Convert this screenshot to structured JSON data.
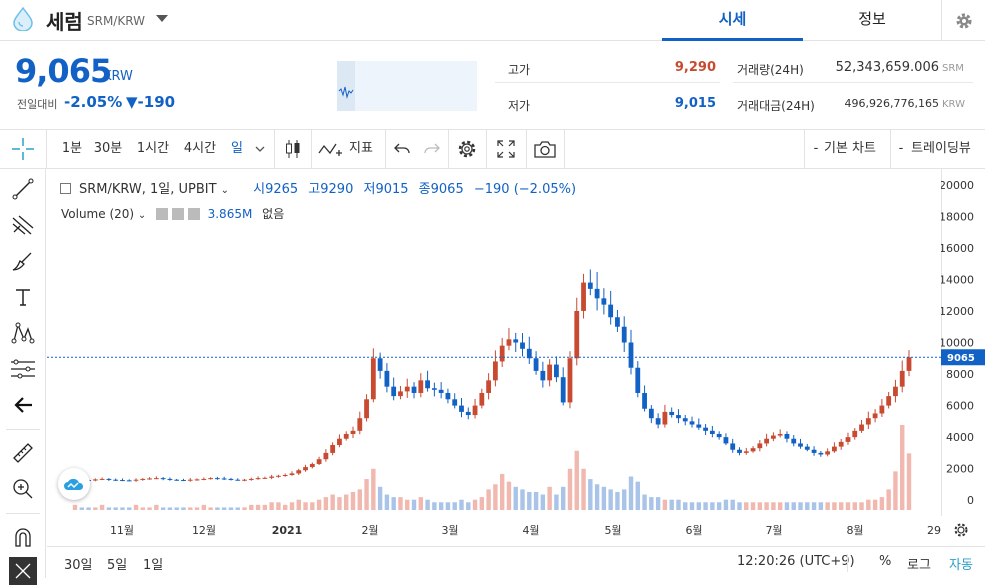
{
  "header": {
    "coin_name": "세럼",
    "pair": "SRM/KRW",
    "tabs": [
      "시세",
      "정보"
    ]
  },
  "ticker": {
    "price": "9,065",
    "unit": "KRW",
    "change_label": "전일대비",
    "change_pct": "-2.05%",
    "change_abs": "▼-190",
    "high_label": "고가",
    "high": "9,290",
    "low_label": "저가",
    "low": "9,015",
    "volume_label": "거래량(24H)",
    "volume": "52,343,659.006",
    "volume_unit": "SRM",
    "amount_label": "거래대금(24H)",
    "amount": "496,926,776,165",
    "amount_unit": "KRW"
  },
  "toolbar": {
    "intervals": [
      "1분",
      "30분",
      "1시간",
      "4시간",
      "일"
    ],
    "indicators": "지표",
    "basic_chart": "기본 차트",
    "trading_view": "트레이딩뷰"
  },
  "legend": {
    "main": "SRM/KRW, 1일, UPBIT",
    "open": "시9265",
    "high": "고9290",
    "low": "저9015",
    "close": "종9065",
    "change": "−190 (−2.05%)",
    "volume_label": "Volume (20)",
    "volume_value": "3.865M",
    "volume_extra": "없음"
  },
  "colors": {
    "up": "#c84a31",
    "down": "#1261c4",
    "accent": "#1261c4"
  },
  "chart_data": {
    "type": "candlestick",
    "x_labels": [
      "11월",
      "12월",
      "2021",
      "2월",
      "3월",
      "4월",
      "5월",
      "6월",
      "7월",
      "8월",
      "29"
    ],
    "y_ticks": [
      0,
      2000,
      4000,
      6000,
      8000,
      10000,
      12000,
      14000,
      16000,
      18000,
      20000
    ],
    "ylim": [
      -1000,
      21000
    ],
    "last_price_label": "9065",
    "close_series": [
      1300,
      1280,
      1250,
      1320,
      1350,
      1300,
      1280,
      1260,
      1240,
      1300,
      1350,
      1380,
      1400,
      1350,
      1300,
      1280,
      1250,
      1300,
      1320,
      1350,
      1400,
      1380,
      1350,
      1300,
      1280,
      1300,
      1350,
      1400,
      1420,
      1500,
      1550,
      1600,
      1700,
      1900,
      2100,
      2300,
      2600,
      3000,
      3500,
      3900,
      4200,
      4400,
      5200,
      6400,
      9000,
      8200,
      7200,
      6600,
      6900,
      7200,
      6800,
      7600,
      7100,
      7000,
      6800,
      6400,
      6000,
      5600,
      5400,
      6000,
      6800,
      7600,
      8800,
      9800,
      10200,
      10000,
      9600,
      9000,
      8200,
      7600,
      8600,
      7800,
      6200,
      9000,
      12000,
      13800,
      13400,
      12800,
      12400,
      11600,
      11000,
      10000,
      8400,
      6800,
      5800,
      5200,
      4800,
      5600,
      5400,
      5200,
      5000,
      4800,
      4600,
      4400,
      4200,
      4000,
      3600,
      3200,
      3000,
      3100,
      3300,
      3600,
      3900,
      4100,
      4200,
      3900,
      3600,
      3400,
      3200,
      3000,
      2900,
      3100,
      3400,
      3700,
      4000,
      4400,
      4800,
      5200,
      5500,
      6000,
      6600,
      7200,
      8200,
      9065
    ],
    "volume_series": [
      0.2,
      0.1,
      0.1,
      0.1,
      0.2,
      0.1,
      0.1,
      0.1,
      0.1,
      0.2,
      0.1,
      0.1,
      0.2,
      0.1,
      0.1,
      0.1,
      0.1,
      0.1,
      0.1,
      0.2,
      0.1,
      0.1,
      0.1,
      0.1,
      0.1,
      0.1,
      0.2,
      0.2,
      0.2,
      0.3,
      0.3,
      0.2,
      0.3,
      0.4,
      0.3,
      0.3,
      0.4,
      0.5,
      0.6,
      0.5,
      0.6,
      0.7,
      0.8,
      1.2,
      1.6,
      0.9,
      0.6,
      0.5,
      0.5,
      0.4,
      0.4,
      0.5,
      0.4,
      0.3,
      0.3,
      0.3,
      0.3,
      0.4,
      0.3,
      0.4,
      0.5,
      0.8,
      1.0,
      1.4,
      1.1,
      0.9,
      0.8,
      0.7,
      0.7,
      0.6,
      0.9,
      0.6,
      0.9,
      1.6,
      2.3,
      1.6,
      1.2,
      1.0,
      0.9,
      0.8,
      0.7,
      0.8,
      1.3,
      1.1,
      0.6,
      0.5,
      0.5,
      0.4,
      0.4,
      0.4,
      0.3,
      0.3,
      0.3,
      0.3,
      0.3,
      0.3,
      0.4,
      0.4,
      0.3,
      0.3,
      0.3,
      0.3,
      0.3,
      0.3,
      0.3,
      0.3,
      0.3,
      0.3,
      0.3,
      0.3,
      0.3,
      0.3,
      0.3,
      0.3,
      0.3,
      0.3,
      0.3,
      0.4,
      0.4,
      0.5,
      0.8,
      1.5,
      3.3,
      2.2
    ]
  },
  "bottom": {
    "ranges": [
      "30일",
      "5일",
      "1일"
    ],
    "time": "12:20:26 (UTC+9)",
    "percent": "%",
    "log": "로그",
    "auto": "자동"
  }
}
